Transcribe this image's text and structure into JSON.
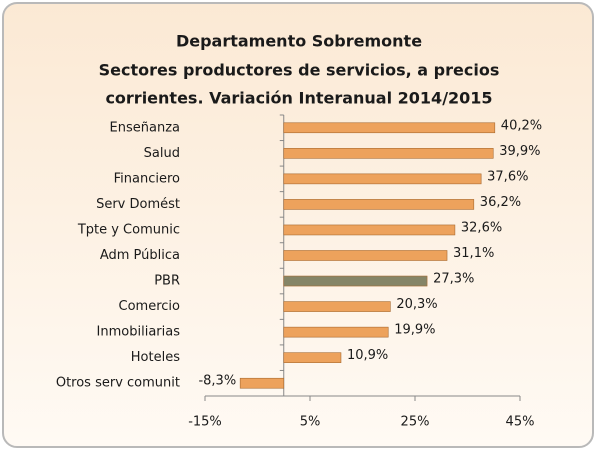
{
  "chart_data": {
    "type": "hbar",
    "title": [
      "Departamento Sobremonte",
      "Sectores productores de servicios, a precios",
      "corrientes. Variación Interanual 2014/2015"
    ],
    "categories": [
      "Enseñanza",
      "Salud",
      "Financiero",
      "Serv Domést",
      "Tpte y Comunic",
      "Adm Pública",
      "PBR",
      "Comercio",
      "Inmobiliarias",
      "Hoteles",
      "Otros serv comunit"
    ],
    "values": [
      40.2,
      39.9,
      37.6,
      36.2,
      32.6,
      31.1,
      27.3,
      20.3,
      19.9,
      10.9,
      -8.3
    ],
    "value_labels": [
      "40,2%",
      "39,9%",
      "37,6%",
      "36,2%",
      "32,6%",
      "31,1%",
      "27,3%",
      "20,3%",
      "19,9%",
      "10,9%",
      "-8,3%"
    ],
    "colors": [
      "#eda25c",
      "#eda25c",
      "#eda25c",
      "#eda25c",
      "#eda25c",
      "#eda25c",
      "#858567",
      "#eda25c",
      "#eda25c",
      "#eda25c",
      "#eda25c"
    ],
    "xlim": [
      -15,
      45
    ],
    "xticks": [
      {
        "value": -15,
        "label": "-15%"
      },
      {
        "value": 5,
        "label": "5%"
      },
      {
        "value": 25,
        "label": "25%"
      },
      {
        "value": 45,
        "label": "45%"
      }
    ],
    "grid": false
  }
}
